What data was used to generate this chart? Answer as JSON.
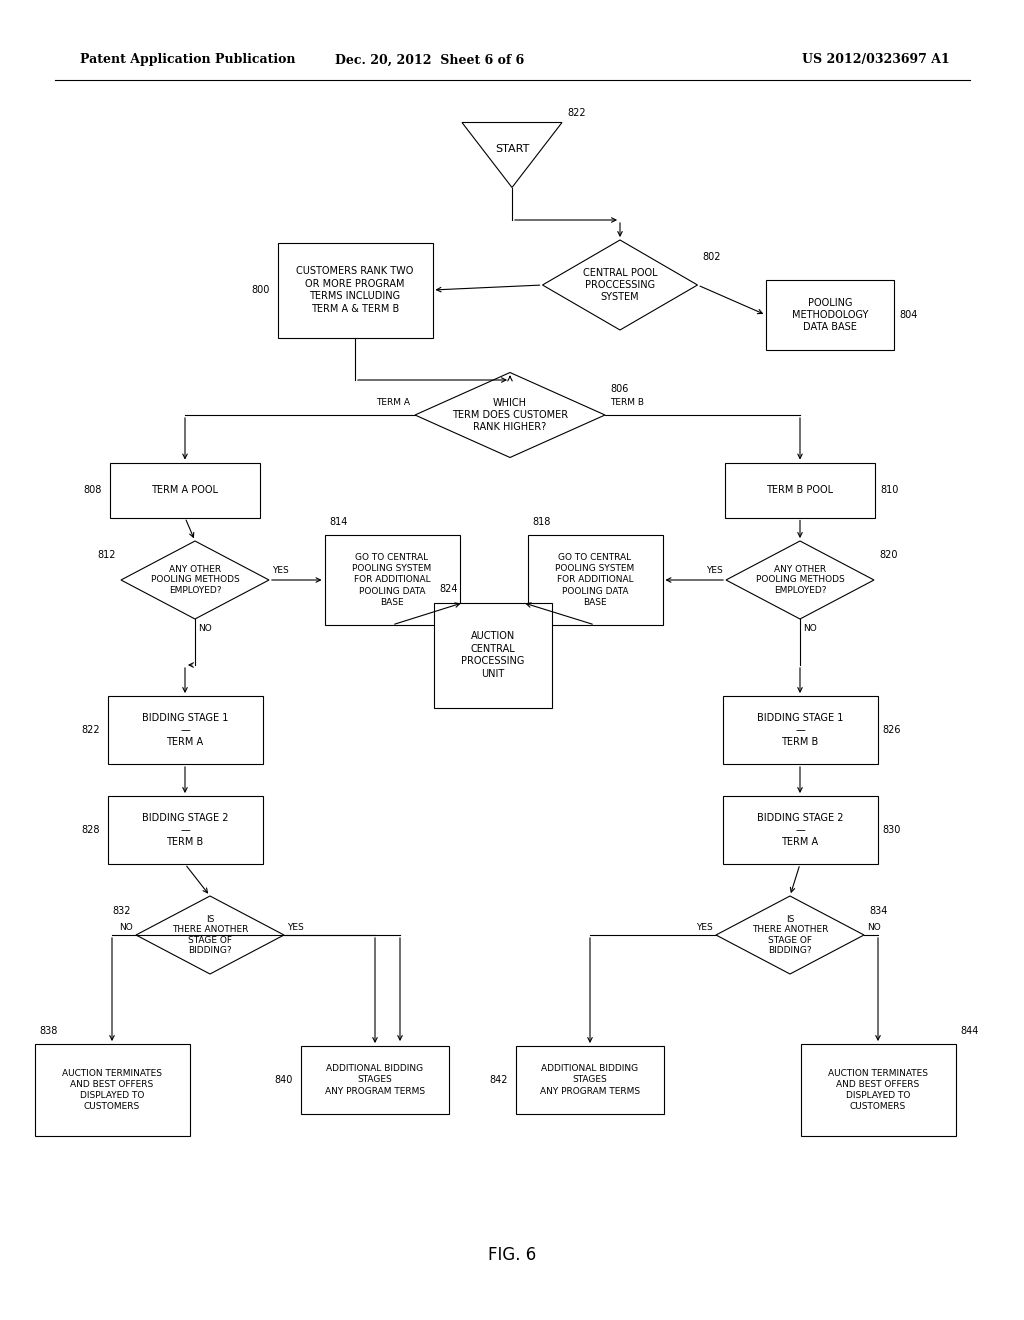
{
  "title_left": "Patent Application Publication",
  "title_mid": "Dec. 20, 2012  Sheet 6 of 6",
  "title_right": "US 2012/0323697 A1",
  "fig_label": "FIG. 6",
  "background": "#ffffff",
  "line_color": "#000000"
}
